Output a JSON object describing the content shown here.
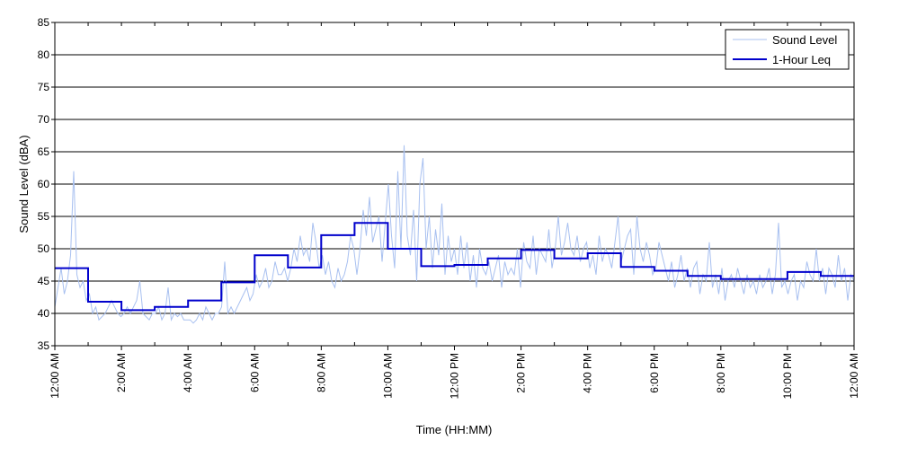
{
  "chart_data": {
    "type": "line",
    "title": "",
    "xlabel": "Time (HH:MM)",
    "ylabel": "Sound Level (dBA)",
    "xlim": [
      0,
      24
    ],
    "ylim": [
      35,
      85
    ],
    "y_ticks": [
      35,
      40,
      45,
      50,
      55,
      60,
      65,
      70,
      75,
      80,
      85
    ],
    "x_ticks": [
      0,
      2,
      4,
      6,
      8,
      10,
      12,
      14,
      16,
      18,
      20,
      22,
      24
    ],
    "x_tick_labels": [
      "12:00 AM",
      "2:00 AM",
      "4:00 AM",
      "6:00 AM",
      "8:00 AM",
      "10:00 AM",
      "12:00 PM",
      "2:00 PM",
      "4:00 PM",
      "6:00 PM",
      "8:00 PM",
      "10:00 PM",
      "12:00 AM"
    ],
    "grid": "horizontal",
    "legend_position": "top-right",
    "series": [
      {
        "name": "Sound Level",
        "color": "#a8c0f0",
        "x_step_hours": 0.0833,
        "values": [
          41,
          44,
          47,
          43,
          45,
          49,
          62,
          46,
          44,
          45,
          42,
          43,
          40,
          41,
          39,
          39.5,
          40,
          41,
          42,
          41,
          40,
          39.5,
          40,
          41,
          40,
          41,
          42,
          45,
          40,
          39.5,
          39,
          40,
          40,
          41,
          39,
          40,
          44,
          39,
          40,
          39.5,
          40,
          39,
          39,
          39,
          38.5,
          39,
          40,
          39,
          41,
          40,
          39,
          40,
          40,
          41,
          48,
          40,
          41,
          40,
          41,
          42,
          43,
          44,
          42,
          43,
          46,
          44,
          45,
          47,
          44,
          45,
          48,
          46,
          46,
          47,
          45,
          47,
          50,
          48,
          52,
          49,
          50,
          48,
          54,
          51,
          47,
          49,
          46,
          48,
          45,
          44,
          47,
          45,
          46,
          48,
          52,
          50,
          46,
          50,
          56,
          52,
          58,
          51,
          53,
          55,
          48,
          54,
          60,
          52,
          47,
          62,
          50,
          66,
          52,
          49,
          56,
          45,
          60,
          64,
          50,
          55,
          47,
          53,
          49,
          57,
          46,
          52,
          48,
          50,
          46,
          52,
          47,
          51,
          45,
          49,
          44,
          50,
          47,
          46,
          48,
          45,
          47,
          49,
          44,
          48,
          46,
          47,
          46,
          50,
          44,
          51,
          48,
          47,
          52,
          46,
          50,
          49,
          48,
          53,
          47,
          50,
          55,
          49,
          51,
          54,
          50,
          49,
          52,
          48,
          50,
          51,
          47,
          49,
          46,
          52,
          48,
          50,
          49,
          47,
          51,
          55,
          48,
          50,
          52,
          53,
          46,
          55,
          50,
          48,
          51,
          49,
          46,
          47,
          51,
          49,
          47,
          45,
          48,
          44,
          46,
          49,
          45,
          47,
          44,
          47,
          48,
          43,
          46,
          45,
          51,
          44,
          46,
          43,
          47,
          42,
          45,
          46,
          44,
          47,
          45,
          43,
          46,
          44,
          45,
          43,
          46,
          44,
          45,
          47,
          43,
          46,
          54,
          44,
          45,
          43,
          45,
          46,
          42,
          45,
          44,
          48,
          46,
          45,
          50,
          45,
          47,
          43,
          47,
          46,
          44,
          49,
          45,
          47,
          42,
          46,
          45
        ]
      },
      {
        "name": "1-Hour Leq",
        "color": "#0000cc",
        "x": [
          0,
          1,
          2,
          3,
          4,
          5,
          6,
          7,
          8,
          9,
          10,
          11,
          12,
          13,
          14,
          15,
          16,
          17,
          18,
          19,
          20,
          21,
          22,
          23
        ],
        "values": [
          47,
          41.8,
          40.5,
          41,
          42,
          44.8,
          49,
          47.1,
          52.1,
          54,
          50,
          47.3,
          47.5,
          48.5,
          49.8,
          48.5,
          49.3,
          47.2,
          46.6,
          45.8,
          45.3,
          45.3,
          46.4,
          45.8
        ]
      }
    ]
  }
}
